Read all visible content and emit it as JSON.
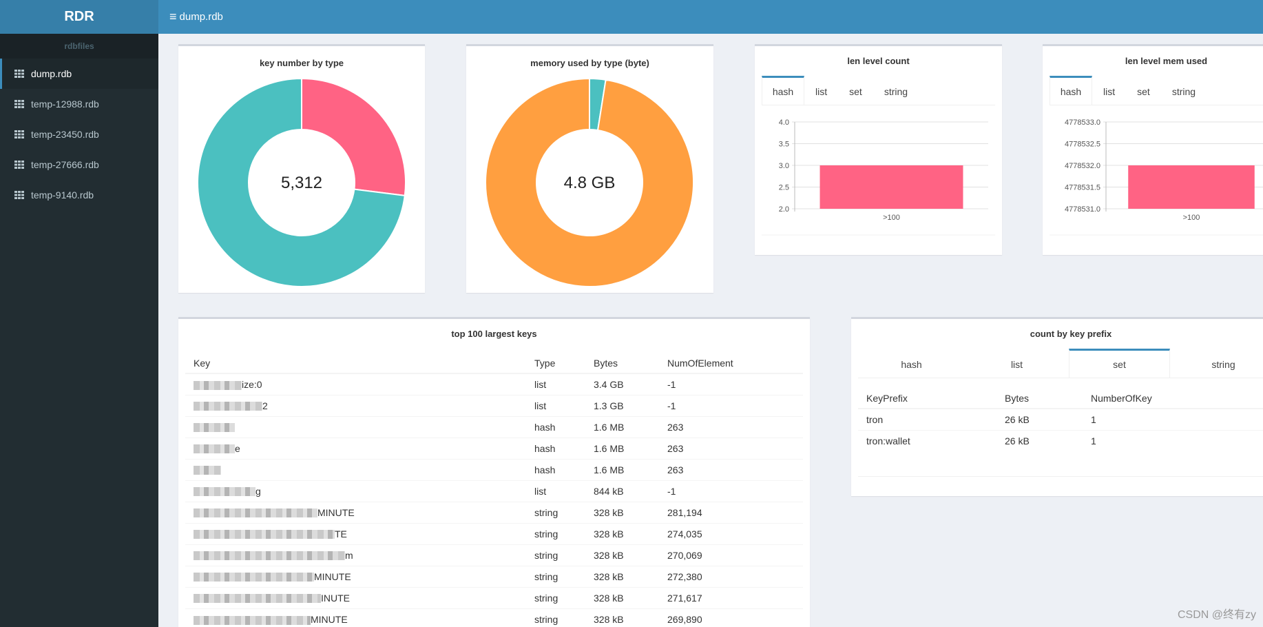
{
  "app": {
    "title": "RDR",
    "current_file": "dump.rdb"
  },
  "sidebar": {
    "header": "rdbfiles",
    "items": [
      {
        "label": "dump.rdb",
        "active": true
      },
      {
        "label": "temp-12988.rdb",
        "active": false
      },
      {
        "label": "temp-23450.rdb",
        "active": false
      },
      {
        "label": "temp-27666.rdb",
        "active": false
      },
      {
        "label": "temp-9140.rdb",
        "active": false
      }
    ]
  },
  "colors": {
    "pink": "#ff6384",
    "teal": "#4bc0c0",
    "orange": "#ff9f40",
    "accent": "#3c8dbc"
  },
  "chart_data": [
    {
      "type": "pie",
      "title": "key number by type",
      "center_label": "5,312",
      "slices": [
        {
          "name": "pink",
          "value": 27
        },
        {
          "name": "teal",
          "value": 73
        }
      ]
    },
    {
      "type": "pie",
      "title": "memory used by type (byte)",
      "center_label": "4.8 GB",
      "slices": [
        {
          "name": "teal",
          "value": 2.5
        },
        {
          "name": "orange",
          "value": 97.5
        }
      ]
    },
    {
      "type": "bar",
      "title": "len level count",
      "tabs": [
        "hash",
        "list",
        "set",
        "string"
      ],
      "active_tab": "hash",
      "categories": [
        ">100"
      ],
      "values": [
        3.0
      ],
      "ylim": [
        2.0,
        4.0
      ],
      "yticks": [
        "4.0",
        "3.5",
        "3.0",
        "2.5",
        "2.0"
      ]
    },
    {
      "type": "bar",
      "title": "len level mem used",
      "tabs": [
        "hash",
        "list",
        "set",
        "string"
      ],
      "active_tab": "hash",
      "categories": [
        ">100"
      ],
      "values": [
        4778532.0
      ],
      "ylim": [
        4778531.0,
        4778533.0
      ],
      "yticks": [
        "4778533.0",
        "4778532.5",
        "4778532.0",
        "4778531.5",
        "4778531.0"
      ]
    }
  ],
  "top_keys": {
    "title": "top 100 largest keys",
    "columns": [
      "Key",
      "Type",
      "Bytes",
      "NumOfElement"
    ],
    "rows": [
      {
        "key": "ize:0",
        "type": "list",
        "bytes": "3.4 GB",
        "num": "-1"
      },
      {
        "key": "2",
        "type": "list",
        "bytes": "1.3 GB",
        "num": "-1"
      },
      {
        "key": "",
        "type": "hash",
        "bytes": "1.6 MB",
        "num": "263"
      },
      {
        "key": "e",
        "type": "hash",
        "bytes": "1.6 MB",
        "num": "263"
      },
      {
        "key": "",
        "type": "hash",
        "bytes": "1.6 MB",
        "num": "263"
      },
      {
        "key": "g",
        "type": "list",
        "bytes": "844 kB",
        "num": "-1"
      },
      {
        "key": "MINUTE",
        "type": "string",
        "bytes": "328 kB",
        "num": "281,194"
      },
      {
        "key": "TE",
        "type": "string",
        "bytes": "328 kB",
        "num": "274,035"
      },
      {
        "key": "m",
        "type": "string",
        "bytes": "328 kB",
        "num": "270,069"
      },
      {
        "key": "MINUTE",
        "type": "string",
        "bytes": "328 kB",
        "num": "272,380"
      },
      {
        "key": "INUTE",
        "type": "string",
        "bytes": "328 kB",
        "num": "271,617"
      },
      {
        "key": "MINUTE",
        "type": "string",
        "bytes": "328 kB",
        "num": "269,890"
      }
    ]
  },
  "prefix": {
    "title": "count by key prefix",
    "tabs": [
      "hash",
      "list",
      "set",
      "string"
    ],
    "active_tab": "set",
    "columns": [
      "KeyPrefix",
      "Bytes",
      "NumberOfKey"
    ],
    "rows": [
      {
        "prefix": "tron",
        "bytes": "26 kB",
        "count": "1"
      },
      {
        "prefix": "tron:wallet",
        "bytes": "26 kB",
        "count": "1"
      }
    ]
  },
  "watermark": "CSDN @终有zy"
}
